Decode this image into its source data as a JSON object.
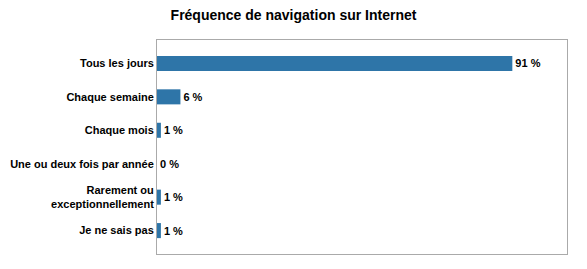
{
  "chart_data": {
    "type": "bar",
    "orientation": "horizontal",
    "title": "Fréquence de navigation sur Internet",
    "categories": [
      "Je ne sais pas",
      "Rarement ou\nexceptionnellement",
      "Une ou deux fois par année",
      "Chaque mois",
      "Chaque semaine",
      "Tous les jours"
    ],
    "values": [
      1,
      1,
      0,
      1,
      6,
      91
    ],
    "value_labels": [
      "1 %",
      "1 %",
      "0 %",
      "1 %",
      "6 %",
      "91 %"
    ],
    "data_labels": true,
    "color": "#2e75a8",
    "xlim": [
      0,
      105
    ],
    "grid": false,
    "tick_labels": "y"
  }
}
